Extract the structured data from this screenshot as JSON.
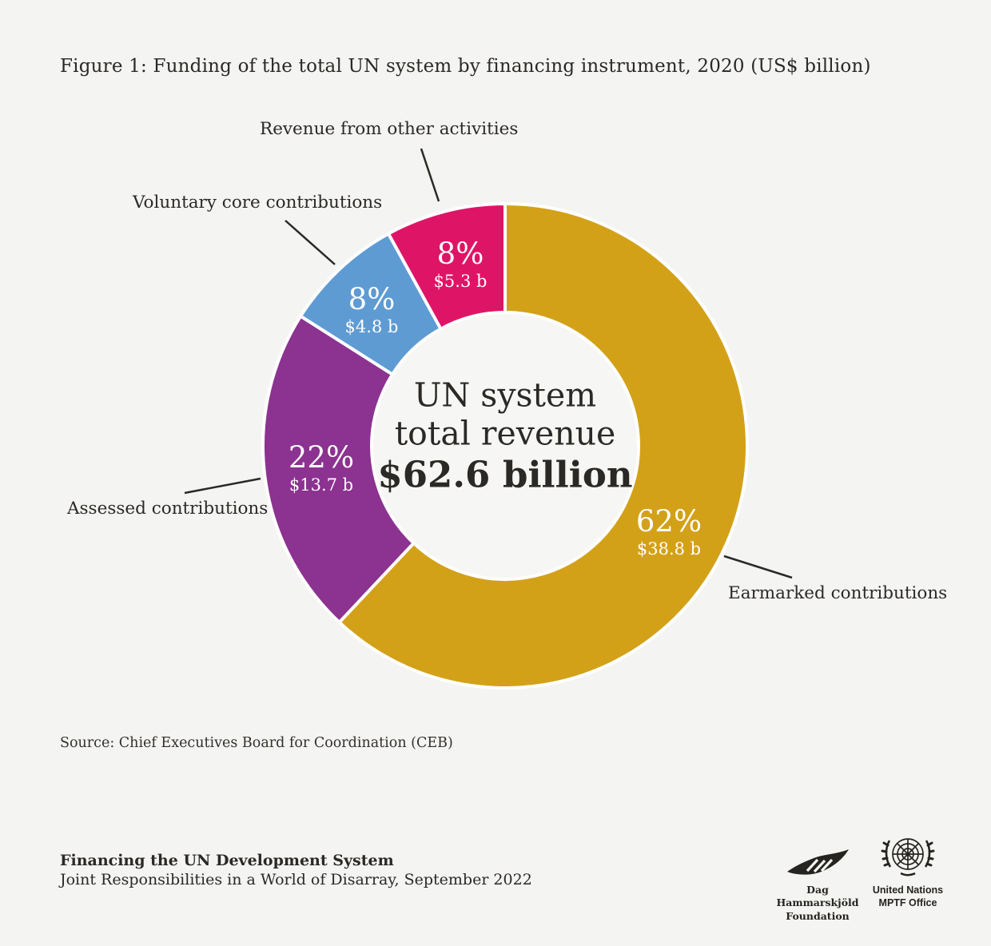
{
  "title": "Figure 1: Funding of the total UN system by financing instrument, 2020 (US$ billion)",
  "chart_data": {
    "type": "pie",
    "subtype": "donut",
    "title": "Figure 1: Funding of the total UN system by financing instrument, 2020 (US$ billion)",
    "unit": "US$ billion",
    "total_value": 62.6,
    "center_label": {
      "line1": "UN system",
      "line2": "total revenue",
      "line3": "$62.6 billion"
    },
    "start_angle_deg": 0,
    "direction": "clockwise",
    "segments": [
      {
        "name": "Earmarked contributions",
        "percent": 62,
        "percent_label": "62%",
        "value": 38.8,
        "value_label": "$38.8 b",
        "color": "#D3A118"
      },
      {
        "name": "Assessed contributions",
        "percent": 22,
        "percent_label": "22%",
        "value": 13.7,
        "value_label": "$13.7 b",
        "color": "#8C3290"
      },
      {
        "name": "Voluntary core contributions",
        "percent": 8,
        "percent_label": "8%",
        "value": 4.8,
        "value_label": "$4.8 b",
        "color": "#5E9BD3"
      },
      {
        "name": "Revenue from other activities",
        "percent": 8,
        "percent_label": "8%",
        "value": 5.3,
        "value_label": "$5.3 b",
        "color": "#DE1566"
      }
    ]
  },
  "source": "Source: Chief Executives Board for Coordination (CEB)",
  "footer": {
    "title": "Financing the UN Development System",
    "subtitle": "Joint Responsibilities in a World of Disarray, September 2022"
  },
  "logos": {
    "dhf": {
      "line1": "Dag Hammarskjöld",
      "line2": "Foundation",
      "icon": "leaf-icon"
    },
    "un": {
      "line1": "United Nations",
      "line2": "MPTF Office",
      "icon": "un-emblem-icon"
    }
  },
  "colors": {
    "background": "#f4f4f2",
    "text": "#2b2926",
    "segment_divider": "#ffffff",
    "leader_line": "#2b2926"
  }
}
